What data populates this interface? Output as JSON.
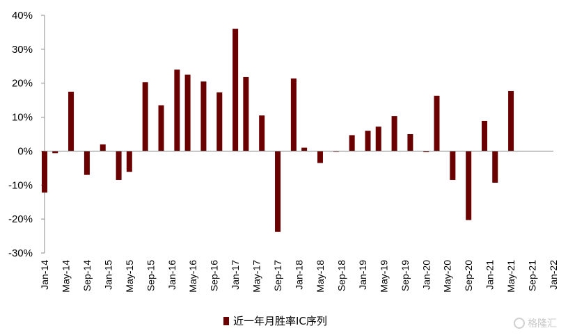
{
  "chart_data": {
    "type": "bar",
    "x": [
      "Jan-14",
      "Feb-14",
      "Mar-14",
      "Apr-14",
      "May-14",
      "Jun-14",
      "Jul-14",
      "Aug-14",
      "Sep-14",
      "Oct-14",
      "Nov-14",
      "Dec-14",
      "Jan-15",
      "Feb-15",
      "Mar-15",
      "Apr-15",
      "May-15",
      "Jun-15",
      "Jul-15",
      "Aug-15",
      "Sep-15",
      "Oct-15",
      "Nov-15",
      "Dec-15",
      "Jan-16",
      "Feb-16",
      "Mar-16",
      "Apr-16",
      "May-16",
      "Jun-16",
      "Jul-16",
      "Aug-16",
      "Sep-16",
      "Oct-16",
      "Nov-16",
      "Dec-16",
      "Jan-17",
      "Feb-17",
      "Mar-17",
      "Apr-17",
      "May-17",
      "Jun-17",
      "Jul-17",
      "Aug-17",
      "Sep-17",
      "Oct-17",
      "Nov-17",
      "Dec-17",
      "Jan-18",
      "Feb-18",
      "Mar-18",
      "Apr-18",
      "May-18",
      "Jun-18",
      "Jul-18",
      "Aug-18",
      "Sep-18",
      "Oct-18",
      "Nov-18",
      "Dec-18",
      "Jan-19",
      "Feb-19",
      "Mar-19",
      "Apr-19",
      "May-19",
      "Jun-19",
      "Jul-19",
      "Aug-19",
      "Sep-19",
      "Oct-19",
      "Nov-19",
      "Dec-19",
      "Jan-20",
      "Feb-20",
      "Mar-20",
      "Apr-20",
      "May-20",
      "Jun-20",
      "Jul-20",
      "Aug-20",
      "Sep-20",
      "Oct-20",
      "Nov-20",
      "Dec-20",
      "Jan-21",
      "Feb-21",
      "Mar-21",
      "Apr-21",
      "May-21",
      "Jun-21",
      "Jul-21",
      "Aug-21",
      "Sep-21",
      "Oct-21",
      "Nov-21",
      "Dec-21",
      "Jan-22"
    ],
    "tick_labels": [
      "Jan-14",
      "May-14",
      "Sep-14",
      "Jan-15",
      "May-15",
      "Sep-15",
      "Jan-16",
      "May-16",
      "Sep-16",
      "Jan-17",
      "May-17",
      "Sep-17",
      "Jan-18",
      "May-18",
      "Sep-18",
      "Jan-19",
      "May-19",
      "Sep-19",
      "Jan-20",
      "May-20",
      "Sep-20",
      "Jan-21",
      "May-21",
      "Sep-21",
      "Jan-22"
    ],
    "bars": [
      {
        "x": "Jan-14",
        "value": -12.2
      },
      {
        "x": "Mar-14",
        "value": -0.6
      },
      {
        "x": "Jun-14",
        "value": 17.5
      },
      {
        "x": "Sep-14",
        "value": -7.0
      },
      {
        "x": "Dec-14",
        "value": 2.0
      },
      {
        "x": "Mar-15",
        "value": -8.5
      },
      {
        "x": "May-15",
        "value": -6.1
      },
      {
        "x": "Aug-15",
        "value": 20.3
      },
      {
        "x": "Nov-15",
        "value": 13.5
      },
      {
        "x": "Feb-16",
        "value": 24.0
      },
      {
        "x": "Apr-16",
        "value": 22.5
      },
      {
        "x": "Jul-16",
        "value": 20.5
      },
      {
        "x": "Oct-16",
        "value": 17.3
      },
      {
        "x": "Jan-17",
        "value": 36.0
      },
      {
        "x": "Mar-17",
        "value": 21.8
      },
      {
        "x": "Jun-17",
        "value": 10.5
      },
      {
        "x": "Sep-17",
        "value": -23.8
      },
      {
        "x": "Dec-17",
        "value": 21.4
      },
      {
        "x": "Feb-18",
        "value": 1.0
      },
      {
        "x": "May-18",
        "value": -3.5
      },
      {
        "x": "Aug-18",
        "value": -0.2
      },
      {
        "x": "Nov-18",
        "value": 4.7
      },
      {
        "x": "Feb-19",
        "value": 6.0
      },
      {
        "x": "Apr-19",
        "value": 7.2
      },
      {
        "x": "Jul-19",
        "value": 10.3
      },
      {
        "x": "Oct-19",
        "value": 5.0
      },
      {
        "x": "Jan-20",
        "value": -0.3
      },
      {
        "x": "Mar-20",
        "value": 16.3
      },
      {
        "x": "Jun-20",
        "value": -8.5
      },
      {
        "x": "Sep-20",
        "value": -20.3
      },
      {
        "x": "Dec-20",
        "value": 8.9
      },
      {
        "x": "Feb-21",
        "value": -9.3
      },
      {
        "x": "May-21",
        "value": 17.7
      }
    ],
    "yticks": [
      "40%",
      "30%",
      "20%",
      "10%",
      "0%",
      "-10%",
      "-20%",
      "-30%"
    ],
    "ylim": [
      -30,
      40
    ],
    "grid": false,
    "legend_position": "bottom",
    "series_name": "近一年月胜率IC序列",
    "bar_color": "#6b0000"
  },
  "legend": {
    "label": "近一年月胜率IC序列"
  },
  "watermark": {
    "text": "格隆汇"
  }
}
